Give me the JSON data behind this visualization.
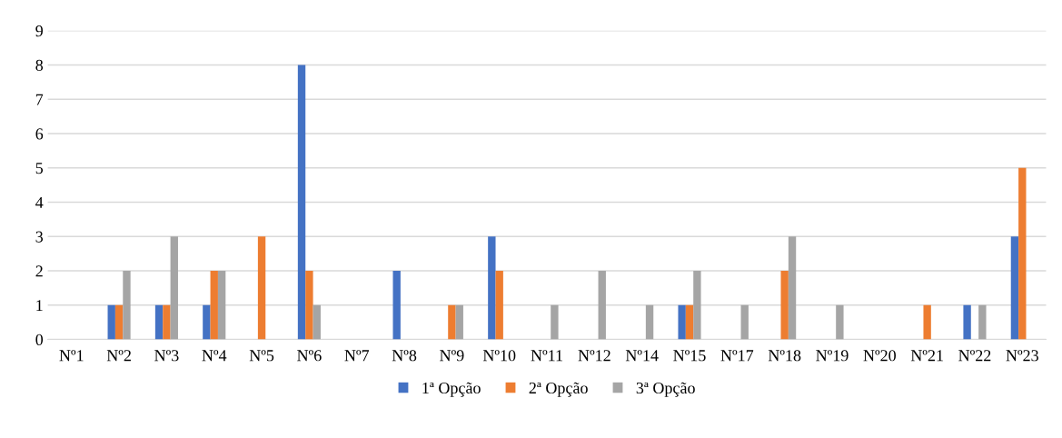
{
  "chart_data": {
    "type": "bar",
    "categories": [
      "Nº1",
      "Nº2",
      "Nº3",
      "Nº4",
      "Nº5",
      "Nº6",
      "Nº7",
      "Nº8",
      "Nº9",
      "Nº10",
      "Nº11",
      "Nº12",
      "Nº14",
      "Nº15",
      "Nº17",
      "Nº18",
      "Nº19",
      "Nº20",
      "Nº21",
      "Nº22",
      "Nº23"
    ],
    "series": [
      {
        "name": "1ª Opção",
        "color": "#4472c4",
        "values": [
          0,
          1,
          1,
          1,
          0,
          8,
          0,
          2,
          0,
          3,
          0,
          0,
          0,
          1,
          0,
          0,
          0,
          0,
          0,
          1,
          3
        ]
      },
      {
        "name": "2ª Opção",
        "color": "#ed7d31",
        "values": [
          0,
          1,
          1,
          2,
          3,
          2,
          0,
          0,
          1,
          2,
          0,
          0,
          0,
          1,
          0,
          2,
          0,
          0,
          1,
          0,
          5
        ]
      },
      {
        "name": "3ª Opção",
        "color": "#a5a5a5",
        "values": [
          0,
          2,
          3,
          2,
          0,
          1,
          0,
          0,
          1,
          0,
          1,
          2,
          1,
          2,
          1,
          3,
          1,
          0,
          0,
          1,
          0
        ]
      }
    ],
    "ylim": [
      0,
      9
    ],
    "yticks": [
      0,
      1,
      2,
      3,
      4,
      5,
      6,
      7,
      8,
      9
    ],
    "grid": "y",
    "legend": "bottom"
  }
}
